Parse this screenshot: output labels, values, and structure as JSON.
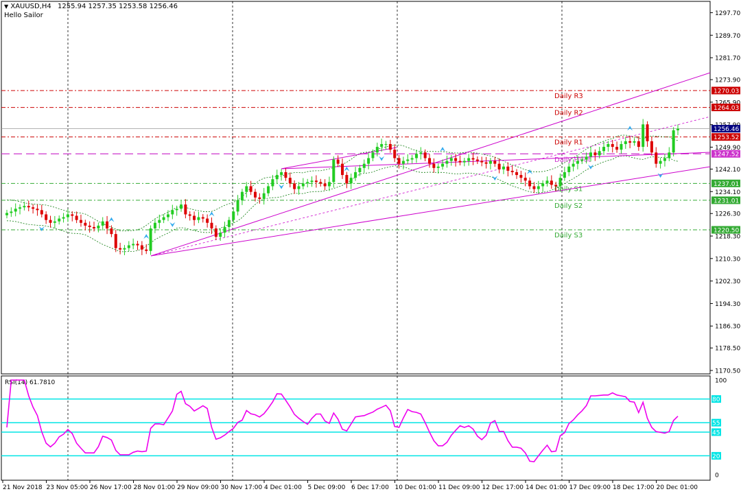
{
  "header": {
    "symbol": "XAUUSD,H4",
    "ohlc": "1255.94 1257.35 1253.58 1256.46",
    "indicator_name": "Hello Sailor"
  },
  "chart_data": [
    {
      "type": "candlestick",
      "symbol": "XAUUSD",
      "timeframe": "H4",
      "ylim": [
        1170.5,
        1301.0
      ],
      "ytick_labels": [
        "1297.70",
        "1289.70",
        "1281.70",
        "1273.90",
        "1265.90",
        "1257.90",
        "1249.90",
        "1242.10",
        "1234.10",
        "1226.30",
        "1218.30",
        "1210.30",
        "1202.30",
        "1194.30",
        "1186.30",
        "1178.50",
        "1170.50"
      ],
      "xtick_labels": [
        "21 Nov 2018",
        "23 Nov 05:00",
        "26 Nov 17:00",
        "28 Nov 01:00",
        "29 Nov 09:00",
        "30 Nov 17:00",
        "4 Dec 01:00",
        "5 Dec 09:00",
        "6 Dec 17:00",
        "10 Dec 01:00",
        "11 Dec 09:00",
        "12 Dec 17:00",
        "14 Dec 01:00",
        "17 Dec 09:00",
        "18 Dec 17:00",
        "20 Dec 01:00"
      ],
      "levels": [
        {
          "name": "Daily R3",
          "value": 1270.03,
          "label": "1270.03",
          "color": "#cc0000"
        },
        {
          "name": "Daily R2",
          "value": 1264.03,
          "label": "1264.03",
          "color": "#cc0000"
        },
        {
          "name": "Daily R1",
          "value": 1253.52,
          "label": "1253.52",
          "color": "#cc0000"
        },
        {
          "name": "Daily Pivot",
          "value": 1247.52,
          "label": "1247.52",
          "color": "#cc33cc"
        },
        {
          "name": "Daily S1",
          "value": 1237.01,
          "label": "1237.01",
          "color": "#33aa33"
        },
        {
          "name": "Daily S2",
          "value": 1231.01,
          "label": "1231.01",
          "color": "#33aa33"
        },
        {
          "name": "Daily S3",
          "value": 1220.5,
          "label": "1220.50",
          "color": "#33aa33"
        }
      ],
      "current_price": {
        "value": 1256.46,
        "label": "1256.46",
        "color": "#000080"
      },
      "closes": [
        1226.5,
        1227.0,
        1228.0,
        1228.5,
        1229.0,
        1228.5,
        1228.0,
        1227.5,
        1226.0,
        1224.0,
        1223.0,
        1223.5,
        1224.5,
        1225.0,
        1226.0,
        1225.5,
        1224.0,
        1223.0,
        1222.0,
        1221.5,
        1221.0,
        1222.0,
        1223.5,
        1221.0,
        1219.0,
        1214.0,
        1213.5,
        1214.0,
        1215.0,
        1215.5,
        1215.0,
        1213.5,
        1213.0,
        1221.0,
        1223.0,
        1224.0,
        1225.0,
        1226.0,
        1227.5,
        1228.0,
        1229.5,
        1226.0,
        1225.5,
        1224.0,
        1225.0,
        1224.5,
        1223.0,
        1221.0,
        1218.0,
        1219.5,
        1221.5,
        1224.0,
        1227.0,
        1231.0,
        1234.0,
        1236.0,
        1234.0,
        1232.0,
        1231.5,
        1233.5,
        1236.0,
        1238.5,
        1240.0,
        1241.0,
        1239.0,
        1237.0,
        1235.0,
        1236.0,
        1237.0,
        1237.5,
        1238.0,
        1237.5,
        1237.0,
        1236.0,
        1237.5,
        1245.5,
        1244.0,
        1240.0,
        1237.0,
        1239.0,
        1241.0,
        1242.5,
        1244.0,
        1246.0,
        1248.0,
        1250.0,
        1251.0,
        1251.0,
        1249.0,
        1246.0,
        1244.0,
        1245.0,
        1245.5,
        1246.0,
        1247.5,
        1248.0,
        1246.0,
        1244.0,
        1242.5,
        1243.0,
        1244.0,
        1245.0,
        1246.0,
        1245.0,
        1244.5,
        1245.0,
        1246.0,
        1245.5,
        1245.0,
        1244.5,
        1244.0,
        1245.0,
        1244.0,
        1242.0,
        1243.0,
        1241.5,
        1241.0,
        1240.0,
        1239.0,
        1238.0,
        1236.0,
        1235.0,
        1236.0,
        1237.0,
        1238.0,
        1236.5,
        1236.0,
        1239.0,
        1241.0,
        1243.0,
        1244.0,
        1245.0,
        1245.5,
        1246.5,
        1248.0,
        1247.0,
        1248.5,
        1250.0,
        1251.0,
        1250.0,
        1249.0,
        1251.0,
        1252.0,
        1251.5,
        1252.0,
        1250.0,
        1258.0,
        1252.0,
        1248.0,
        1244.0,
        1245.0,
        1246.0,
        1248.0,
        1255.9,
        1256.46
      ],
      "rsi": {
        "label": "RSI(14) 61.7810",
        "period": 14,
        "value": 61.781,
        "ylim": [
          0,
          100
        ],
        "levels": [
          80,
          55,
          45,
          20
        ],
        "tick_labels": [
          "100",
          "80",
          "55",
          "45",
          "20",
          "0"
        ]
      }
    }
  ]
}
